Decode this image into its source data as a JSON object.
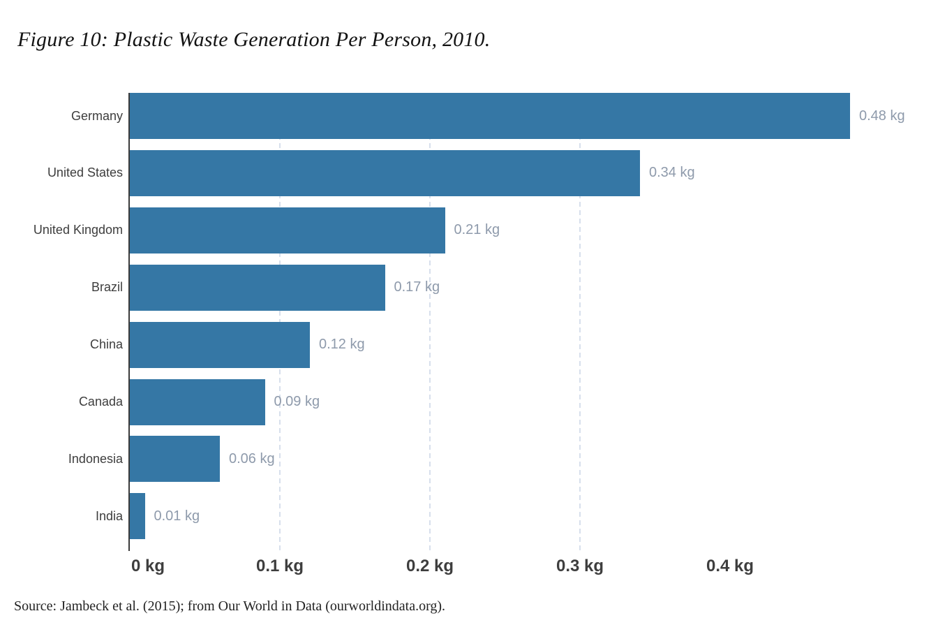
{
  "title": "Figure 10: Plastic Waste Generation Per Person, 2010.",
  "source": "Source: Jambeck et al. (2015); from Our World in Data (ourworldindata.org).",
  "chart_data": {
    "type": "bar",
    "orientation": "horizontal",
    "title": "Figure 10: Plastic Waste Generation Per Person, 2010.",
    "xlabel": "",
    "ylabel": "",
    "unit": "kg",
    "categories": [
      "Germany",
      "United States",
      "United Kingdom",
      "Brazil",
      "China",
      "Canada",
      "Indonesia",
      "India"
    ],
    "values": [
      0.48,
      0.34,
      0.21,
      0.17,
      0.12,
      0.09,
      0.06,
      0.01
    ],
    "value_labels": [
      "0.48 kg",
      "0.34 kg",
      "0.21 kg",
      "0.17 kg",
      "0.12 kg",
      "0.09 kg",
      "0.06 kg",
      "0.01 kg"
    ],
    "x_ticks": [
      {
        "value": 0,
        "label": "0 kg"
      },
      {
        "value": 0.1,
        "label": "0.1 kg"
      },
      {
        "value": 0.2,
        "label": "0.2 kg"
      },
      {
        "value": 0.3,
        "label": "0.3 kg"
      },
      {
        "value": 0.4,
        "label": "0.4 kg"
      }
    ],
    "gridlines_at": [
      0.1,
      0.2,
      0.3
    ],
    "xlim": [
      0,
      0.5
    ],
    "grid": "vertical-dashed",
    "legend": "none",
    "colors": {
      "bar": "#3577a5",
      "value_label": "#8e9aab",
      "category_label": "#3d3d3d",
      "tick_label": "#3e3e3e",
      "gridline": "#d7dfec",
      "axis_line": "#3b3b3b"
    }
  }
}
